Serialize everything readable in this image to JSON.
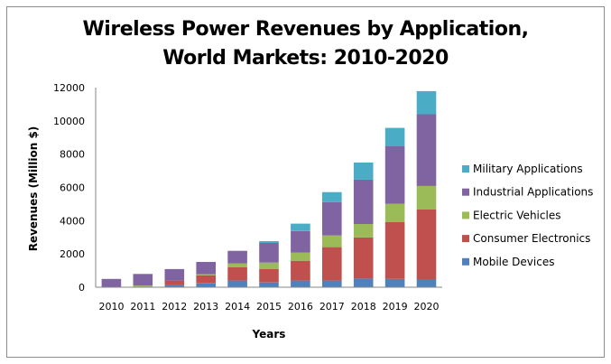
{
  "chart_data": {
    "type": "bar",
    "stacked": true,
    "title_lines": [
      "Wireless Power Revenues by Application,",
      "World Markets: 2010-2020"
    ],
    "xlabel": "Years",
    "ylabel": "Revenues (Million $)",
    "ylim": [
      0,
      12000
    ],
    "yticks": [
      0,
      2000,
      4000,
      6000,
      8000,
      10000,
      12000
    ],
    "grid": false,
    "legend_position": "right",
    "categories": [
      "2010",
      "2011",
      "2012",
      "2013",
      "2014",
      "2015",
      "2016",
      "2017",
      "2018",
      "2019",
      "2020"
    ],
    "series": [
      {
        "name": "Mobile Devices",
        "color": "#4f81bd",
        "values": [
          0,
          0,
          130,
          230,
          400,
          290,
          400,
          400,
          520,
          500,
          490
        ]
      },
      {
        "name": "Consumer Electronics",
        "color": "#c0504d",
        "values": [
          0,
          0,
          270,
          490,
          810,
          810,
          1190,
          2010,
          2470,
          3410,
          4180
        ]
      },
      {
        "name": "Electric Vehicles",
        "color": "#9bbb59",
        "values": [
          0,
          100,
          0,
          60,
          220,
          380,
          490,
          700,
          810,
          1100,
          1420
        ]
      },
      {
        "name": "Industrial Applications",
        "color": "#8064a2",
        "values": [
          500,
          700,
          690,
          740,
          760,
          1180,
          1300,
          2010,
          2670,
          3480,
          4310
        ]
      },
      {
        "name": "Military Applications",
        "color": "#4bacc6",
        "values": [
          0,
          0,
          0,
          0,
          0,
          110,
          440,
          600,
          1030,
          1090,
          1390
        ]
      }
    ],
    "legend_order": [
      "Military Applications",
      "Industrial Applications",
      "Electric Vehicles",
      "Consumer Electronics",
      "Mobile Devices"
    ]
  }
}
